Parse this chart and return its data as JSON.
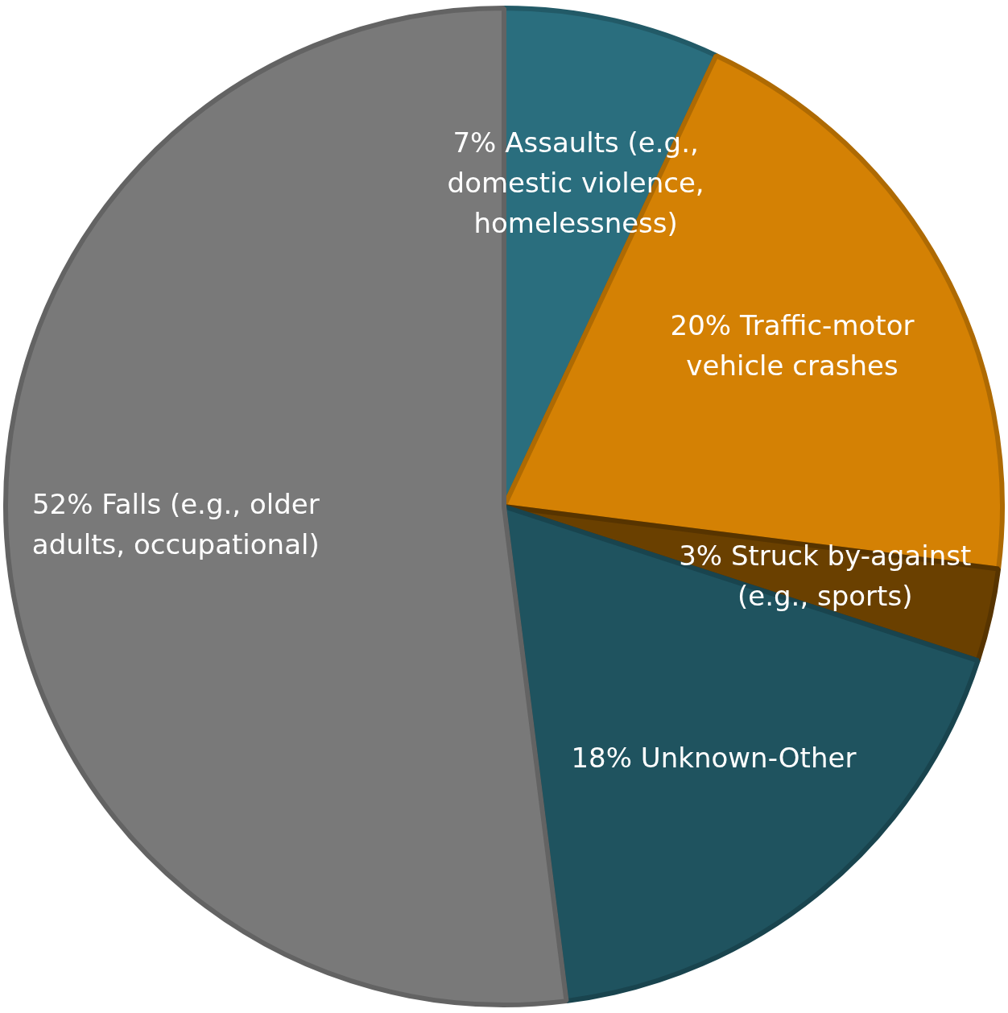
{
  "chart_data": {
    "type": "pie",
    "categories": [
      "Assaults (e.g., domestic violence, homelessness)",
      "Traffic-motor vehicle crashes",
      "Struck by-against (e.g., sports)",
      "Unknown-Other",
      "Falls (e.g., older adults, occupational)"
    ],
    "values": [
      7,
      20,
      3,
      18,
      52
    ],
    "colors": [
      "#2a6e7e",
      "#d48104",
      "#6a4000",
      "#1f535f",
      "#797979"
    ],
    "value_labels": [
      "7%",
      "20%",
      "3%",
      "18%",
      "52%"
    ],
    "legend": false
  }
}
